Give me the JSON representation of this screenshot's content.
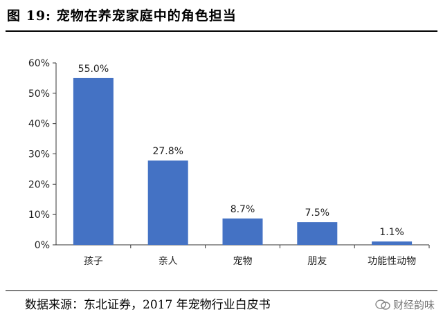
{
  "header": {
    "figure_no": "图 19:",
    "title": "宠物在养宠家庭中的角色担当"
  },
  "footer": {
    "source": "数据来源：东北证券，2017 年宠物行业白皮书",
    "watermark": "财经韵味"
  },
  "colors": {
    "bar": "#4472C4",
    "axis": "#333333",
    "text": "#222222"
  },
  "chart_data": {
    "type": "bar",
    "title": "宠物在养宠家庭中的角色担当",
    "xlabel": "",
    "ylabel": "",
    "categories": [
      "孩子",
      "亲人",
      "宠物",
      "朋友",
      "功能性动物"
    ],
    "values": [
      55.0,
      27.8,
      8.7,
      7.5,
      1.1
    ],
    "data_labels": [
      "55.0%",
      "27.8%",
      "8.7%",
      "7.5%",
      "1.1%"
    ],
    "ylim": [
      0,
      60
    ],
    "yticks": [
      0,
      10,
      20,
      30,
      40,
      50,
      60
    ],
    "ytick_labels": [
      "0%",
      "10%",
      "20%",
      "30%",
      "40%",
      "50%",
      "60%"
    ],
    "grid": false,
    "legend": "none"
  }
}
